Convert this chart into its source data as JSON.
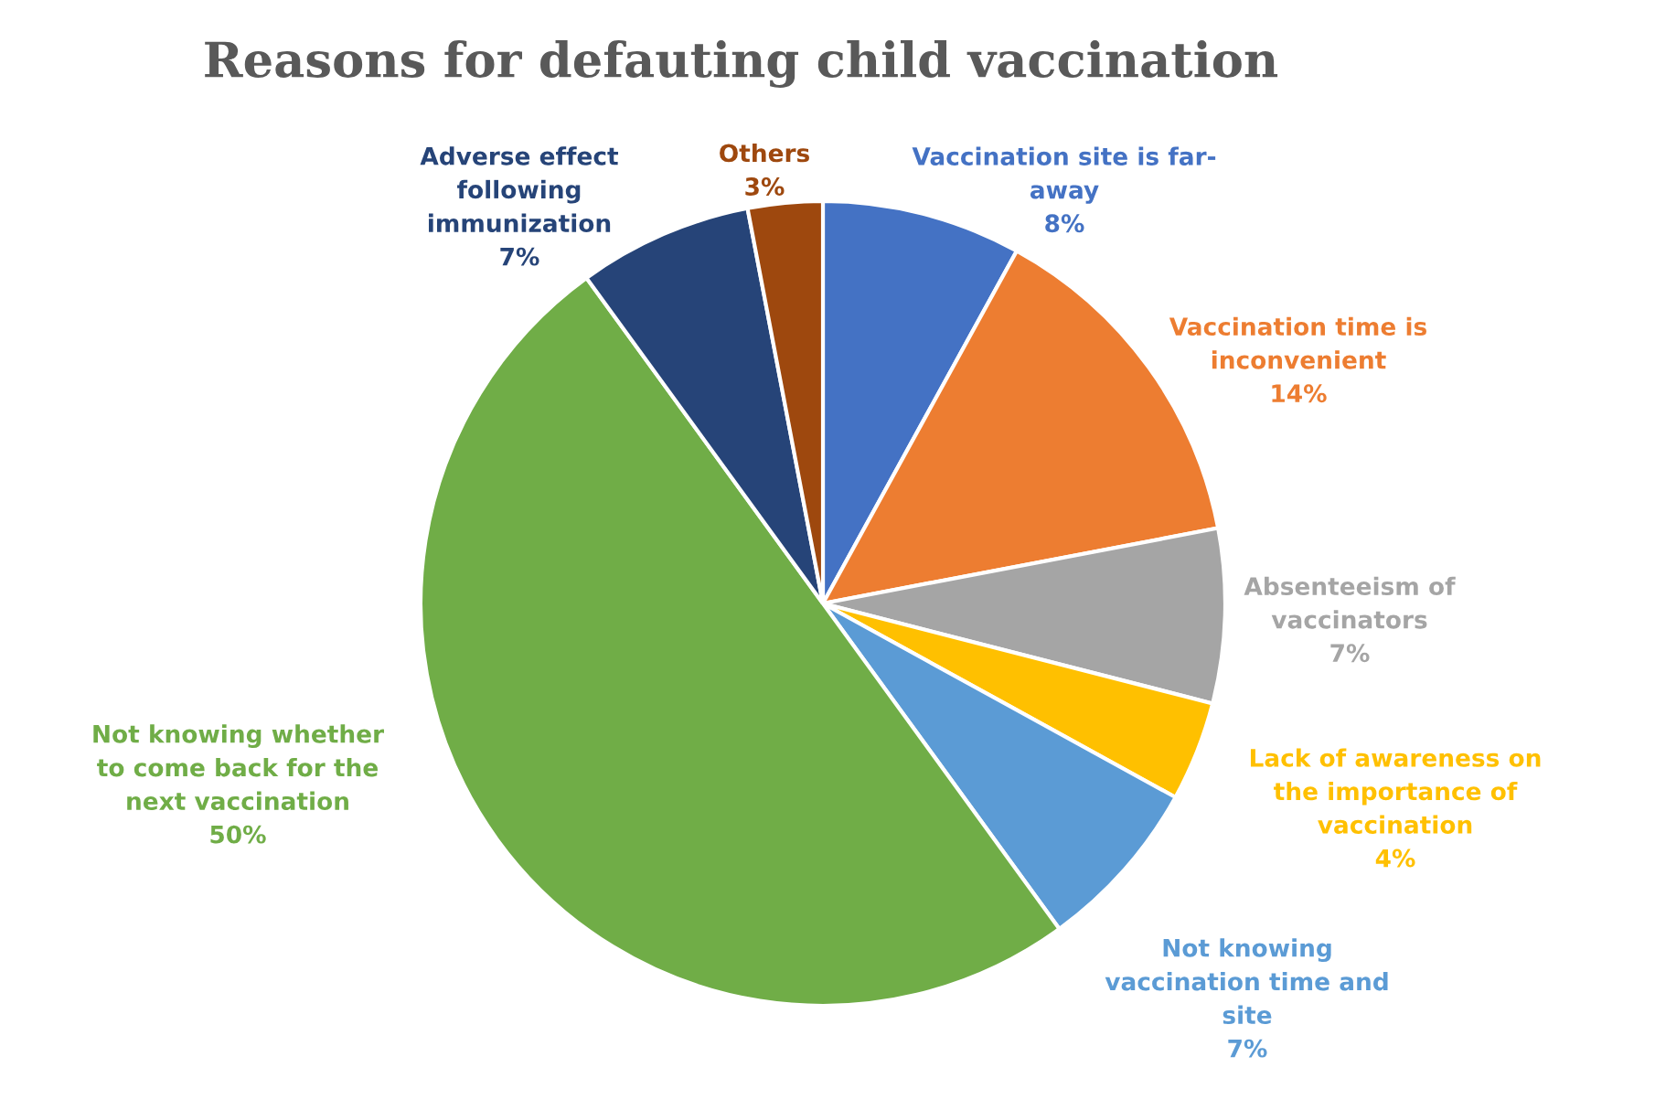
{
  "chart_data": {
    "type": "pie",
    "title": "Reasons for defauting child vaccination",
    "categories": [
      "Vaccination site is far-\naway",
      "Vaccination time is\ninconvenient",
      "Absenteeism of\nvaccinators",
      "Lack of awareness on\nthe importance of\nvaccination",
      "Not knowing\nvaccination time and\nsite",
      "Not knowing whether\nto come back for the\nnext vaccination",
      "Adverse effect\nfollowing\nimmunization",
      "Others"
    ],
    "values": [
      8,
      14,
      7,
      4,
      7,
      50,
      7,
      3
    ],
    "colors": [
      "#4472c4",
      "#ed7d31",
      "#a5a5a5",
      "#ffc000",
      "#5b9bd5",
      "#70ad47",
      "#264478",
      "#9e480e"
    ],
    "value_labels": [
      "8%",
      "14%",
      "7%",
      "4%",
      "7%",
      "50%",
      "7%",
      "3%"
    ]
  }
}
